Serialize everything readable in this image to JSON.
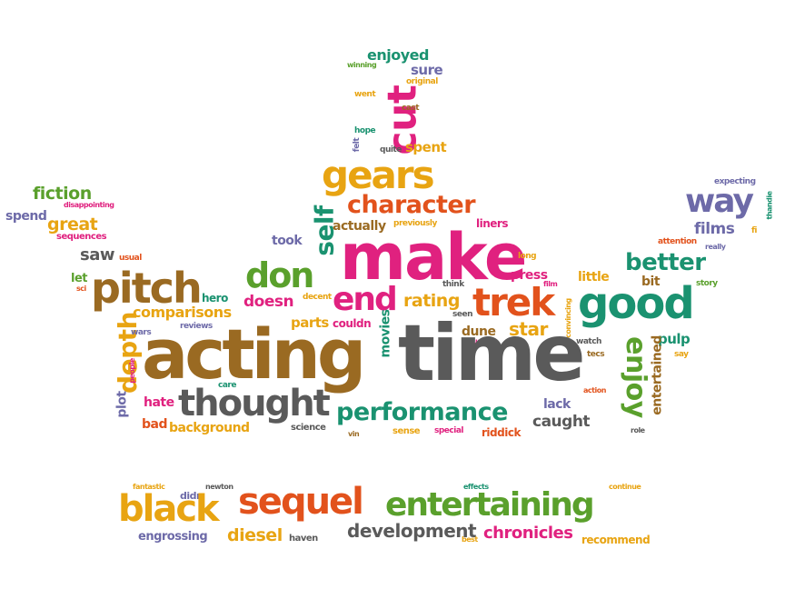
{
  "colors": {
    "brown": "#9a6a22",
    "gray": "#5a5a5a",
    "green": "#5aa02c",
    "pink": "#e0217f",
    "orange": "#e8a412",
    "purple": "#6d6aa8",
    "teal": "#1a9270",
    "redorange": "#e2521c"
  },
  "words": [
    "enjoyed",
    "winning",
    "sure",
    "original",
    "went",
    "cut",
    "cast",
    "hope",
    "felt",
    "quite",
    "spent",
    "gears",
    "character",
    "self",
    "actually",
    "previously",
    "liners",
    "make",
    "long",
    "fiction",
    "disappointing",
    "spend",
    "great",
    "sequences",
    "saw",
    "usual",
    "took",
    "expecting",
    "way",
    "thandie",
    "films",
    "fi",
    "attention",
    "really",
    "better",
    "bit",
    "story",
    "little",
    "let",
    "sci",
    "pitch",
    "hero",
    "don",
    "doesn",
    "decent",
    "end",
    "rating",
    "think",
    "seen",
    "press",
    "film",
    "trek",
    "good",
    "comparisons",
    "reviews",
    "parts",
    "couldn",
    "dune",
    "use",
    "star",
    "convincing",
    "watch",
    "tecs",
    "pulp",
    "say",
    "depth",
    "wars",
    "people",
    "acting",
    "movies",
    "time",
    "enjoy",
    "entertained",
    "plot",
    "care",
    "hate",
    "thought",
    "performance",
    "action",
    "lack",
    "bad",
    "background",
    "science",
    "vin",
    "sense",
    "special",
    "riddick",
    "caught",
    "role",
    "fantastic",
    "newton",
    "effects",
    "continue",
    "didn",
    "black",
    "sequel",
    "entertaining",
    "engrossing",
    "diesel",
    "haven",
    "development",
    "best",
    "chronicles",
    "recommend"
  ]
}
